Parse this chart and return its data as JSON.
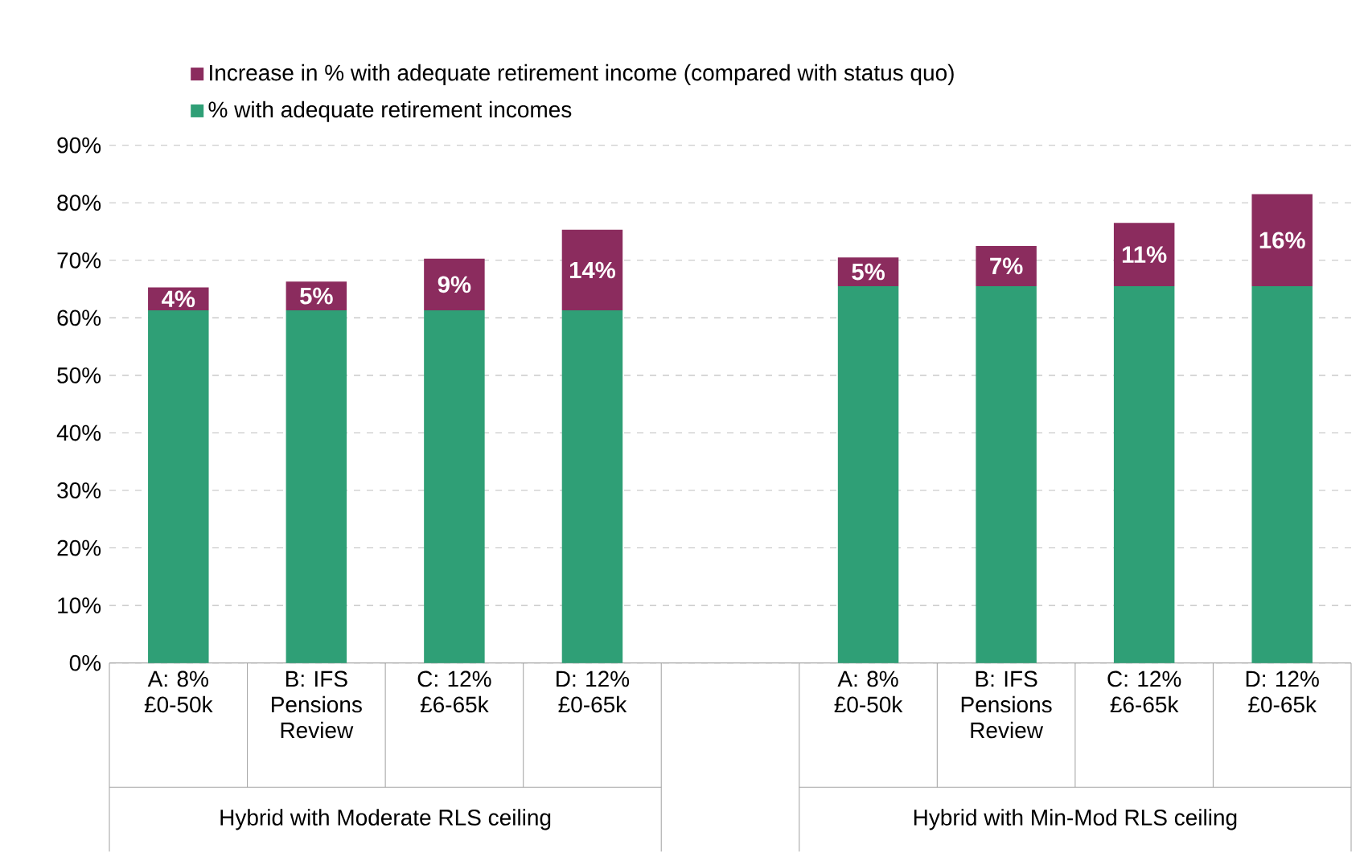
{
  "chart_data": {
    "type": "bar",
    "stacked": true,
    "categories": [
      "A: 8% £0-50k",
      "B: IFS Pensions Review",
      "C: 12% £6-65k",
      "D: 12% £0-65k",
      null,
      "A: 8% £0-50k",
      "B: IFS Pensions Review",
      "C: 12% £6-65k",
      "D: 12% £0-65k"
    ],
    "series": [
      {
        "name": "% with adequate retirement incomes",
        "color": "#2f9f76",
        "values": [
          61.3,
          61.3,
          61.3,
          61.3,
          null,
          65.5,
          65.5,
          65.5,
          65.5
        ]
      },
      {
        "name": "Increase in % with adequate retirement income (compared with status quo)",
        "color": "#8b2c5e",
        "values": [
          4,
          5,
          9,
          14,
          null,
          5,
          7,
          11,
          16
        ],
        "value_labels": [
          "4%",
          "5%",
          "9%",
          "14%",
          null,
          "5%",
          "7%",
          "11%",
          "16%"
        ]
      }
    ],
    "ylim": [
      0,
      90
    ],
    "yticks": [
      {
        "value": 0,
        "label": "0%"
      },
      {
        "value": 10,
        "label": "10%"
      },
      {
        "value": 20,
        "label": "20%"
      },
      {
        "value": 30,
        "label": "30%"
      },
      {
        "value": 40,
        "label": "40%"
      },
      {
        "value": 50,
        "label": "50%"
      },
      {
        "value": 60,
        "label": "60%"
      },
      {
        "value": 70,
        "label": "70%"
      },
      {
        "value": 80,
        "label": "80%"
      },
      {
        "value": 90,
        "label": "90%"
      }
    ],
    "grid": "y",
    "legend": "top left",
    "annotations": [
      "Hybrid with Moderate RLS ceiling",
      "Hybrid with Min-Mod RLS ceiling"
    ]
  }
}
